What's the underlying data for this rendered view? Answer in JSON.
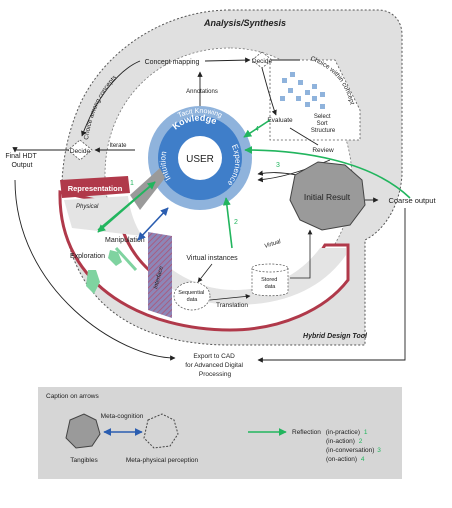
{
  "title": "Analysis/Synthesis",
  "tool_label": "Hybrid Design Tool",
  "nodes": {
    "concept_mapping": "Concept mapping",
    "decide_top": "Decide",
    "decide_left": "Decide",
    "iterate": "Iterate",
    "annotations": "Annotations",
    "evaluate": "Evaluate",
    "review": "Review",
    "select_sort_structure": [
      "Select",
      "Sort",
      "Structure"
    ],
    "choice_among_concepts": "Choice among concepts",
    "choice_within_concept": "Choice within concept",
    "final_hdt_output": [
      "Final HDT",
      "Output"
    ],
    "initial_result": "Initial Result",
    "coarse_output": "Coarse output",
    "export_to_cad": [
      "Export to CAD",
      "for Advanced Digital",
      "Processing"
    ]
  },
  "core": {
    "user": "USER",
    "tacit_knowing": "Tacit Knowing",
    "knowledge": "Kowledge",
    "experience": "Experience",
    "intuition": "Intuition"
  },
  "representation": {
    "title": "Representation",
    "physical": "Physical",
    "virtual": "Virtual",
    "interface": "Interface",
    "manipulation": "Manipulation",
    "exploration": "Exploration",
    "virtual_instances": "Virtual instances",
    "sequential_data": [
      "Sequential",
      "data"
    ],
    "translation": "Translation",
    "stored_data": [
      "Stored",
      "data"
    ]
  },
  "arrow_numbers": [
    "1",
    "2",
    "3",
    "4"
  ],
  "caption": {
    "title": "Caption on arrows",
    "meta_cognition": "Meta-cognition",
    "tangibles": "Tangibles",
    "meta_physical": "Meta-physical perception",
    "reflection_prefix": "Reflection",
    "reflection_items": [
      {
        "text": "(in-practice)",
        "num": "1"
      },
      {
        "text": "(in-action)",
        "num": "2"
      },
      {
        "text": "(in-conversation)",
        "num": "3"
      },
      {
        "text": "(on-action)",
        "num": "4"
      }
    ]
  },
  "colors": {
    "green": "#22b55e",
    "blue_core": "#3f7ec9",
    "blue_ring": "#8fb3dc",
    "red_band": "#b0394a",
    "outer_gray": "#dedede",
    "caption_gray": "#d6d6d6"
  }
}
